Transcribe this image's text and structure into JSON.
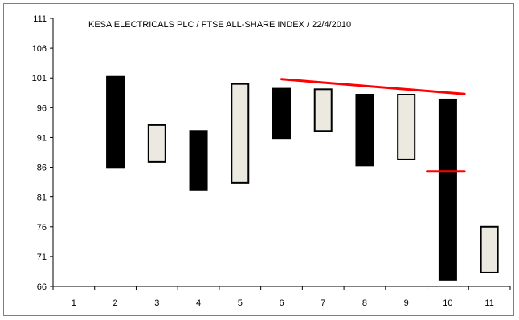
{
  "chart_data": {
    "type": "candlestick",
    "title": "KESA ELECTRICALS PLC / FTSE ALL-SHARE INDEX / 22/4/2010",
    "xlabel": "",
    "ylabel": "",
    "x_ticks": [
      "1",
      "2",
      "3",
      "4",
      "5",
      "6",
      "7",
      "8",
      "9",
      "10",
      "11"
    ],
    "y_ticks": [
      "66",
      "71",
      "76",
      "81",
      "86",
      "91",
      "96",
      "101",
      "106",
      "111"
    ],
    "ylim": [
      66,
      111
    ],
    "xlim": [
      0.5,
      11.5
    ],
    "grid": false,
    "legend": "none",
    "colors": {
      "filled": "#000000",
      "hollow": "#ebe9e0",
      "trendline": "#ff0000",
      "axis": "#000000"
    },
    "candles": [
      {
        "x": 2,
        "low": 85.9,
        "high": 101.2,
        "style": "filled"
      },
      {
        "x": 3,
        "low": 86.9,
        "high": 93.1,
        "style": "hollow"
      },
      {
        "x": 4,
        "low": 82.2,
        "high": 92.1,
        "style": "filled"
      },
      {
        "x": 5,
        "low": 83.4,
        "high": 100.0,
        "style": "hollow"
      },
      {
        "x": 6,
        "low": 90.9,
        "high": 99.2,
        "style": "filled"
      },
      {
        "x": 7,
        "low": 92.1,
        "high": 99.1,
        "style": "hollow"
      },
      {
        "x": 8,
        "low": 86.3,
        "high": 98.2,
        "style": "filled"
      },
      {
        "x": 9,
        "low": 87.3,
        "high": 98.2,
        "style": "hollow"
      },
      {
        "x": 10,
        "low": 67.1,
        "high": 97.4,
        "style": "filled"
      },
      {
        "x": 11,
        "low": 68.3,
        "high": 76.0,
        "style": "hollow"
      }
    ],
    "annotations": [
      {
        "type": "line",
        "color": "#ff0000",
        "x1": 6.0,
        "y1": 100.8,
        "x2": 10.4,
        "y2": 98.3
      },
      {
        "type": "line",
        "color": "#ff0000",
        "x1": 9.5,
        "y1": 85.3,
        "x2": 10.4,
        "y2": 85.3
      }
    ]
  }
}
